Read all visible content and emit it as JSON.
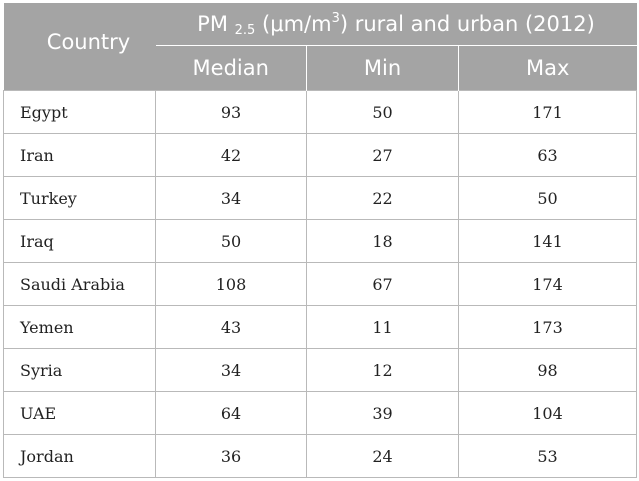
{
  "table": {
    "title_prefix": "PM",
    "title_sub": "2.5",
    "title_unit_open": " (μm/m",
    "title_sup": "3",
    "title_suffix": ") rural and urban (2012)",
    "headers": {
      "country": "Country",
      "median": "Median",
      "min": "Min",
      "max": "Max"
    },
    "rows": [
      {
        "country": "Egypt",
        "median": "93",
        "min": "50",
        "max": "171"
      },
      {
        "country": "Iran",
        "median": "42",
        "min": "27",
        "max": "63"
      },
      {
        "country": "Turkey",
        "median": "34",
        "min": "22",
        "max": "50"
      },
      {
        "country": "Iraq",
        "median": "50",
        "min": "18",
        "max": "141"
      },
      {
        "country": "Saudi Arabia",
        "median": "108",
        "min": "67",
        "max": "174"
      },
      {
        "country": "Yemen",
        "median": "43",
        "min": "11",
        "max": "173"
      },
      {
        "country": "Syria",
        "median": "34",
        "min": "12",
        "max": "98"
      },
      {
        "country": "UAE",
        "median": "64",
        "min": "39",
        "max": "104"
      },
      {
        "country": "Jordan",
        "median": "36",
        "min": "24",
        "max": "53"
      }
    ]
  }
}
